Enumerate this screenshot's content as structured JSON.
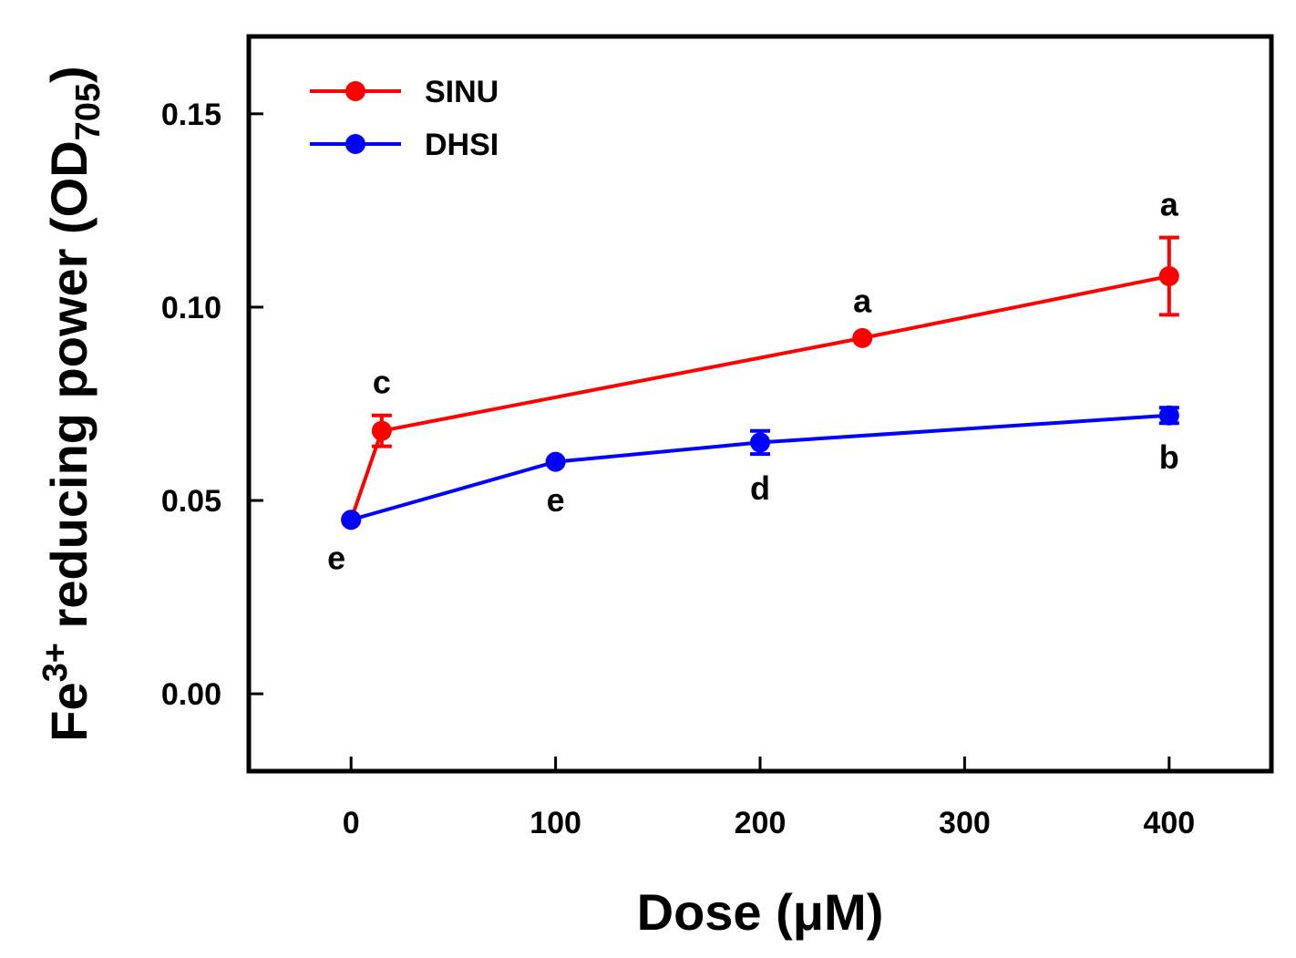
{
  "chart_data": {
    "type": "line",
    "title": "",
    "xlabel": "Dose (μM)",
    "ylabel": {
      "prefix": "Fe",
      "prefix_sup": "3+",
      "main": " reducing power (OD",
      "sub": "705",
      "suffix": ")"
    },
    "xlim": [
      -50,
      450
    ],
    "ylim": [
      -0.02,
      0.17
    ],
    "xticks": [
      0,
      100,
      200,
      300,
      400
    ],
    "xtick_labels": [
      "0",
      "100",
      "200",
      "300",
      "400"
    ],
    "yticks": [
      0.0,
      0.05,
      0.1,
      0.15
    ],
    "ytick_labels": [
      "0.00",
      "0.05",
      "0.10",
      "0.15"
    ],
    "legend_position": "top-left",
    "series": [
      {
        "name": "SINU",
        "color": "#ff0000",
        "x": [
          0,
          15,
          250,
          400
        ],
        "y": [
          0.045,
          0.068,
          0.092,
          0.108
        ],
        "err": [
          0.001,
          0.004,
          0.001,
          0.01
        ],
        "labels": [
          "",
          "c",
          "a",
          "a"
        ],
        "label_side": [
          "",
          "above",
          "above",
          "above"
        ]
      },
      {
        "name": "DHSI",
        "color": "#0000ff",
        "x": [
          0,
          100,
          200,
          400
        ],
        "y": [
          0.045,
          0.06,
          0.065,
          0.072
        ],
        "err": [
          0.001,
          0.001,
          0.003,
          0.002
        ],
        "labels": [
          "e",
          "e",
          "d",
          "b"
        ],
        "label_side": [
          "below",
          "below",
          "below",
          "below"
        ]
      }
    ]
  }
}
